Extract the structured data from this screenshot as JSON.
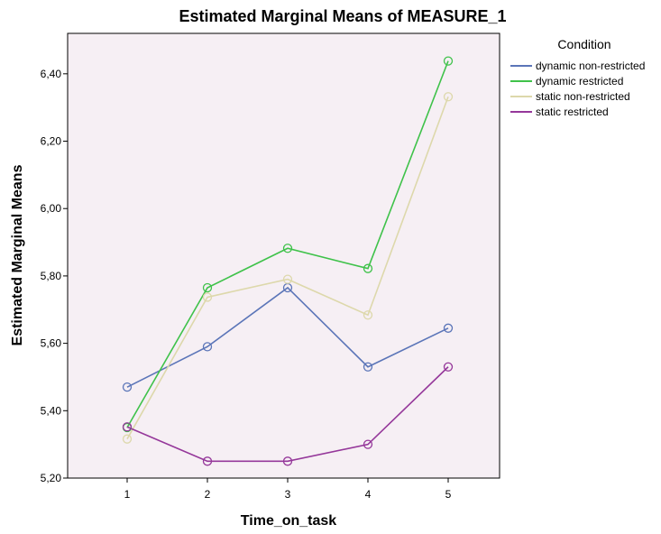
{
  "chart_data": {
    "type": "line",
    "title": "Estimated Marginal Means of MEASURE_1",
    "xlabel": "Time_on_task",
    "ylabel": "Estimated Marginal Means",
    "x": [
      "1",
      "2",
      "3",
      "4",
      "5"
    ],
    "ylim": [
      5.2,
      6.52
    ],
    "yticks": [
      "5,20",
      "5,40",
      "5,60",
      "5,80",
      "6,00",
      "6,20",
      "6,40"
    ],
    "legend_title": "Condition",
    "legend_position": "right",
    "grid": false,
    "plot_background": "#f6eff4",
    "series": [
      {
        "name": "dynamic non-restricted",
        "color": "#5b75b8",
        "values": [
          5.47,
          5.59,
          5.765,
          5.53,
          5.645
        ]
      },
      {
        "name": "dynamic restricted",
        "color": "#3fc24a",
        "values": [
          5.35,
          5.765,
          5.882,
          5.822,
          6.438
        ]
      },
      {
        "name": "static non-restricted",
        "color": "#ddd8ab",
        "values": [
          5.316,
          5.737,
          5.79,
          5.684,
          6.332
        ]
      },
      {
        "name": "static restricted",
        "color": "#95379a",
        "values": [
          5.352,
          5.25,
          5.25,
          5.3,
          5.53
        ]
      }
    ]
  }
}
